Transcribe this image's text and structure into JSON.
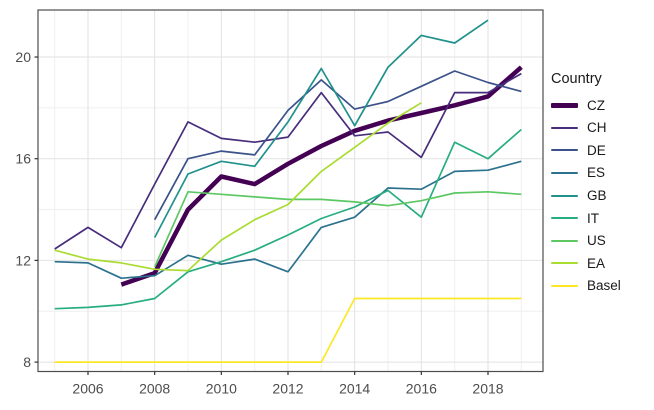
{
  "chart": {
    "type": "line",
    "legend_title": "Country",
    "x_domain": [
      2004.5,
      2019.65
    ],
    "y_domain": [
      7.63,
      21.85
    ],
    "x_major_ticks": [
      2006,
      2008,
      2010,
      2012,
      2014,
      2016,
      2018
    ],
    "x_minor_ticks": [
      2005,
      2007,
      2009,
      2011,
      2013,
      2015,
      2017,
      2019
    ],
    "y_major_ticks": [
      8,
      12,
      16,
      20
    ],
    "y_minor_ticks": [
      10,
      14,
      18
    ],
    "grid": "on",
    "legend_position": "right",
    "background": "#ffffff",
    "panel_border_color": "#4d4d4d",
    "grid_major_color": "#e2e2e2",
    "grid_minor_color": "#efefef",
    "axis_text_color": "#4d4d4d",
    "tick_mark_color": "#333333",
    "series": [
      {
        "name": "CZ",
        "color": "#440154",
        "width": 4.5,
        "points": [
          [
            2007,
            11.05
          ],
          [
            2008,
            11.5
          ],
          [
            2009,
            14.0
          ],
          [
            2010,
            15.3
          ],
          [
            2011,
            15.0
          ],
          [
            2012,
            15.8
          ],
          [
            2013,
            16.5
          ],
          [
            2014,
            17.1
          ],
          [
            2015,
            17.5
          ],
          [
            2016,
            17.8
          ],
          [
            2017,
            18.1
          ],
          [
            2018,
            18.45
          ],
          [
            2019,
            19.6
          ]
        ]
      },
      {
        "name": "CH",
        "color": "#472D7B",
        "width": 1.7,
        "points": [
          [
            2005,
            12.45
          ],
          [
            2006,
            13.3
          ],
          [
            2007,
            12.5
          ],
          [
            2008,
            15.0
          ],
          [
            2009,
            17.45
          ],
          [
            2010,
            16.8
          ],
          [
            2011,
            16.65
          ],
          [
            2012,
            16.85
          ],
          [
            2013,
            18.6
          ],
          [
            2014,
            16.9
          ],
          [
            2015,
            17.05
          ],
          [
            2016,
            16.05
          ],
          [
            2017,
            18.6
          ],
          [
            2018,
            18.6
          ],
          [
            2019,
            19.35
          ]
        ]
      },
      {
        "name": "DE",
        "color": "#3B528B",
        "width": 1.7,
        "points": [
          [
            2008,
            13.6
          ],
          [
            2009,
            16.0
          ],
          [
            2010,
            16.3
          ],
          [
            2011,
            16.15
          ],
          [
            2012,
            17.9
          ],
          [
            2013,
            19.1
          ],
          [
            2014,
            17.95
          ],
          [
            2015,
            18.25
          ],
          [
            2016,
            18.85
          ],
          [
            2017,
            19.45
          ],
          [
            2018,
            19.0
          ],
          [
            2019,
            18.65
          ]
        ]
      },
      {
        "name": "ES",
        "color": "#2C728E",
        "width": 1.7,
        "points": [
          [
            2005,
            11.95
          ],
          [
            2006,
            11.9
          ],
          [
            2007,
            11.3
          ],
          [
            2008,
            11.4
          ],
          [
            2009,
            12.2
          ],
          [
            2010,
            11.85
          ],
          [
            2011,
            12.05
          ],
          [
            2012,
            11.55
          ],
          [
            2013,
            13.3
          ],
          [
            2014,
            13.7
          ],
          [
            2015,
            14.85
          ],
          [
            2016,
            14.8
          ],
          [
            2017,
            15.5
          ],
          [
            2018,
            15.55
          ],
          [
            2019,
            15.9
          ]
        ]
      },
      {
        "name": "GB",
        "color": "#21918C",
        "width": 1.7,
        "points": [
          [
            2008,
            12.9
          ],
          [
            2009,
            15.4
          ],
          [
            2010,
            15.9
          ],
          [
            2011,
            15.7
          ],
          [
            2012,
            17.45
          ],
          [
            2013,
            19.55
          ],
          [
            2014,
            17.3
          ],
          [
            2015,
            19.6
          ],
          [
            2016,
            20.85
          ],
          [
            2017,
            20.55
          ],
          [
            2018,
            21.45
          ]
        ]
      },
      {
        "name": "IT",
        "color": "#27AD81",
        "width": 1.7,
        "points": [
          [
            2005,
            10.1
          ],
          [
            2006,
            10.15
          ],
          [
            2007,
            10.25
          ],
          [
            2008,
            10.5
          ],
          [
            2009,
            11.55
          ],
          [
            2010,
            11.95
          ],
          [
            2011,
            12.4
          ],
          [
            2012,
            13.0
          ],
          [
            2013,
            13.65
          ],
          [
            2014,
            14.1
          ],
          [
            2015,
            14.75
          ],
          [
            2016,
            13.7
          ],
          [
            2017,
            16.65
          ],
          [
            2018,
            16.0
          ],
          [
            2019,
            17.15
          ]
        ]
      },
      {
        "name": "US",
        "color": "#5DC863",
        "width": 1.7,
        "points": [
          [
            2008,
            11.75
          ],
          [
            2009,
            14.7
          ],
          [
            2010,
            14.6
          ],
          [
            2011,
            14.5
          ],
          [
            2012,
            14.4
          ],
          [
            2013,
            14.4
          ],
          [
            2014,
            14.3
          ],
          [
            2015,
            14.15
          ],
          [
            2016,
            14.35
          ],
          [
            2017,
            14.65
          ],
          [
            2018,
            14.7
          ],
          [
            2019,
            14.6
          ]
        ]
      },
      {
        "name": "EA",
        "color": "#AADC32",
        "width": 1.7,
        "points": [
          [
            2005,
            12.4
          ],
          [
            2006,
            12.05
          ],
          [
            2007,
            11.9
          ],
          [
            2008,
            11.65
          ],
          [
            2009,
            11.6
          ],
          [
            2010,
            12.8
          ],
          [
            2011,
            13.6
          ],
          [
            2012,
            14.2
          ],
          [
            2013,
            15.5
          ],
          [
            2014,
            16.45
          ],
          [
            2015,
            17.4
          ],
          [
            2016,
            18.2
          ]
        ]
      },
      {
        "name": "Basel",
        "color": "#FDE725",
        "width": 1.7,
        "points": [
          [
            2005,
            8
          ],
          [
            2006,
            8
          ],
          [
            2007,
            8
          ],
          [
            2008,
            8
          ],
          [
            2009,
            8
          ],
          [
            2010,
            8
          ],
          [
            2011,
            8
          ],
          [
            2012,
            8
          ],
          [
            2013,
            8
          ],
          [
            2014,
            10.5
          ],
          [
            2015,
            10.5
          ],
          [
            2016,
            10.5
          ],
          [
            2017,
            10.5
          ],
          [
            2018,
            10.5
          ],
          [
            2019,
            10.5
          ]
        ]
      }
    ]
  },
  "chart_data": {
    "type": "line",
    "title": "",
    "xlabel": "",
    "ylabel": "",
    "xlim": [
      2004.5,
      2019.65
    ],
    "ylim": [
      7.63,
      21.85
    ],
    "x_ticks": [
      2006,
      2008,
      2010,
      2012,
      2014,
      2016,
      2018
    ],
    "y_ticks": [
      8,
      12,
      16,
      20
    ],
    "grid": "on",
    "legend_title": "Country",
    "legend_position": "right",
    "series": [
      {
        "name": "CZ",
        "x": [
          2007,
          2008,
          2009,
          2010,
          2011,
          2012,
          2013,
          2014,
          2015,
          2016,
          2017,
          2018,
          2019
        ],
        "values": [
          11.05,
          11.5,
          14.0,
          15.3,
          15.0,
          15.8,
          16.5,
          17.1,
          17.5,
          17.8,
          18.1,
          18.45,
          19.6
        ]
      },
      {
        "name": "CH",
        "x": [
          2005,
          2006,
          2007,
          2008,
          2009,
          2010,
          2011,
          2012,
          2013,
          2014,
          2015,
          2016,
          2017,
          2018,
          2019
        ],
        "values": [
          12.45,
          13.3,
          12.5,
          15.0,
          17.45,
          16.8,
          16.65,
          16.85,
          18.6,
          16.9,
          17.05,
          16.05,
          18.6,
          18.6,
          19.35
        ]
      },
      {
        "name": "DE",
        "x": [
          2008,
          2009,
          2010,
          2011,
          2012,
          2013,
          2014,
          2015,
          2016,
          2017,
          2018,
          2019
        ],
        "values": [
          13.6,
          16.0,
          16.3,
          16.15,
          17.9,
          19.1,
          17.95,
          18.25,
          18.85,
          19.45,
          19.0,
          18.65
        ]
      },
      {
        "name": "ES",
        "x": [
          2005,
          2006,
          2007,
          2008,
          2009,
          2010,
          2011,
          2012,
          2013,
          2014,
          2015,
          2016,
          2017,
          2018,
          2019
        ],
        "values": [
          11.95,
          11.9,
          11.3,
          11.4,
          12.2,
          11.85,
          12.05,
          11.55,
          13.3,
          13.7,
          14.85,
          14.8,
          15.5,
          15.55,
          15.9
        ]
      },
      {
        "name": "GB",
        "x": [
          2008,
          2009,
          2010,
          2011,
          2012,
          2013,
          2014,
          2015,
          2016,
          2017,
          2018
        ],
        "values": [
          12.9,
          15.4,
          15.9,
          15.7,
          17.45,
          19.55,
          17.3,
          19.6,
          20.85,
          20.55,
          21.45
        ]
      },
      {
        "name": "IT",
        "x": [
          2005,
          2006,
          2007,
          2008,
          2009,
          2010,
          2011,
          2012,
          2013,
          2014,
          2015,
          2016,
          2017,
          2018,
          2019
        ],
        "values": [
          10.1,
          10.15,
          10.25,
          10.5,
          11.55,
          11.95,
          12.4,
          13.0,
          13.65,
          14.1,
          14.75,
          13.7,
          16.65,
          16.0,
          17.15
        ]
      },
      {
        "name": "US",
        "x": [
          2008,
          2009,
          2010,
          2011,
          2012,
          2013,
          2014,
          2015,
          2016,
          2017,
          2018,
          2019
        ],
        "values": [
          11.75,
          14.7,
          14.6,
          14.5,
          14.4,
          14.4,
          14.3,
          14.15,
          14.35,
          14.65,
          14.7,
          14.6
        ]
      },
      {
        "name": "EA",
        "x": [
          2005,
          2006,
          2007,
          2008,
          2009,
          2010,
          2011,
          2012,
          2013,
          2014,
          2015,
          2016
        ],
        "values": [
          12.4,
          12.05,
          11.9,
          11.65,
          11.6,
          12.8,
          13.6,
          14.2,
          15.5,
          16.45,
          17.4,
          18.2
        ]
      },
      {
        "name": "Basel",
        "x": [
          2005,
          2006,
          2007,
          2008,
          2009,
          2010,
          2011,
          2012,
          2013,
          2014,
          2015,
          2016,
          2017,
          2018,
          2019
        ],
        "values": [
          8,
          8,
          8,
          8,
          8,
          8,
          8,
          8,
          8,
          10.5,
          10.5,
          10.5,
          10.5,
          10.5,
          10.5
        ]
      }
    ]
  }
}
